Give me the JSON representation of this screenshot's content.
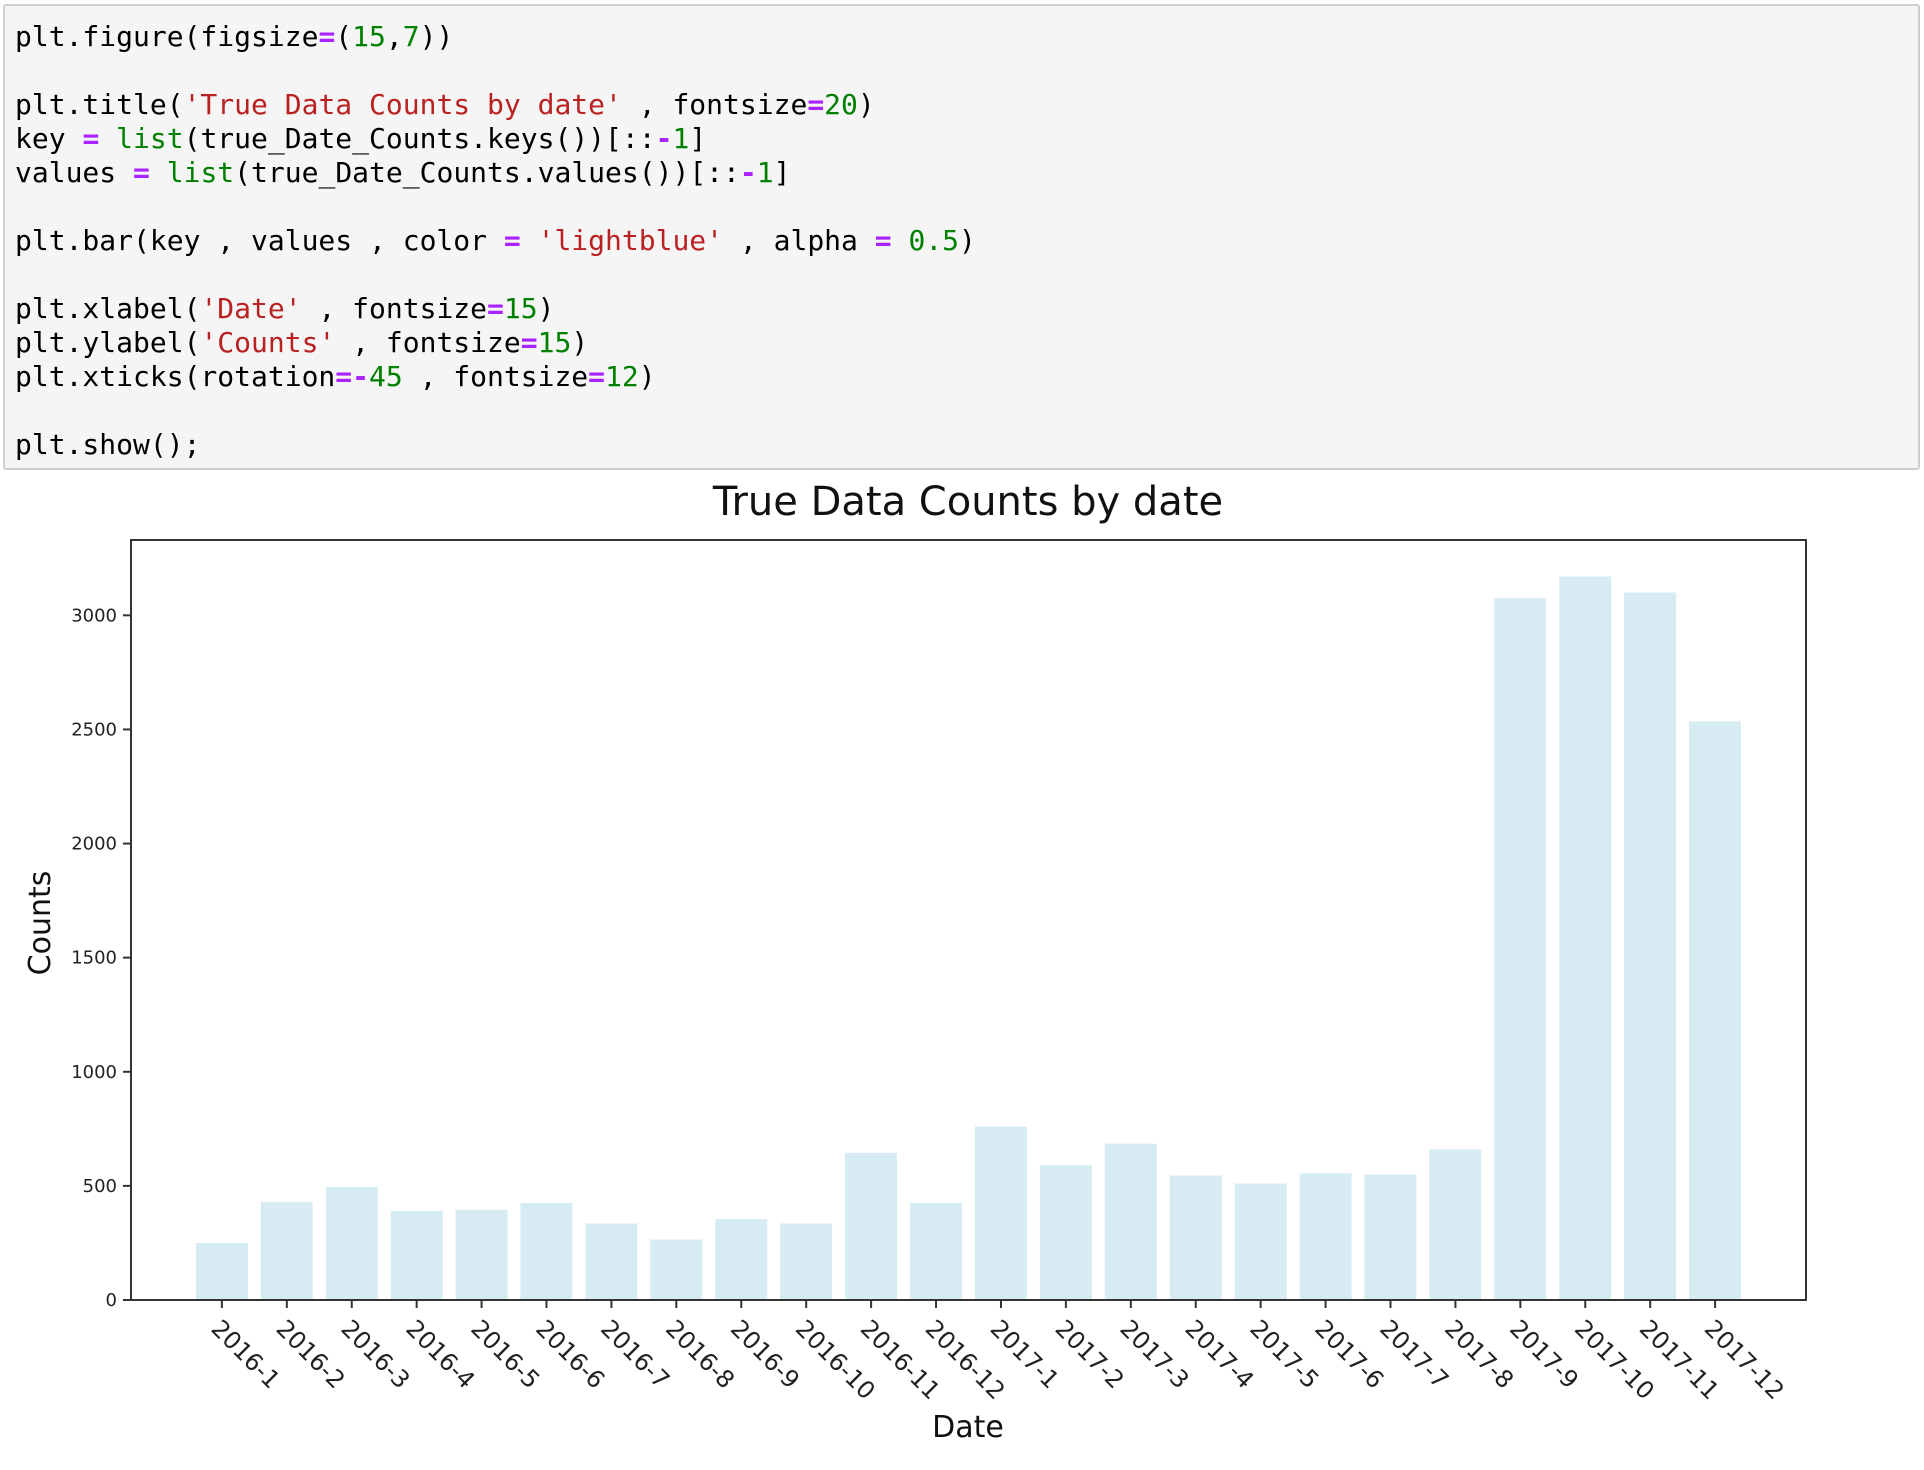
{
  "code_cell": {
    "lines": [
      [
        {
          "t": "plt.figure(figsize"
        },
        {
          "t": "=",
          "c": "op"
        },
        {
          "t": "("
        },
        {
          "t": "15",
          "c": "num"
        },
        {
          "t": ","
        },
        {
          "t": "7",
          "c": "num"
        },
        {
          "t": "))"
        }
      ],
      [],
      [
        {
          "t": "plt.title("
        },
        {
          "t": "'True Data Counts by date'",
          "c": "str"
        },
        {
          "t": " , fontsize"
        },
        {
          "t": "=",
          "c": "op"
        },
        {
          "t": "20",
          "c": "num"
        },
        {
          "t": ")"
        }
      ],
      [
        {
          "t": "key "
        },
        {
          "t": "=",
          "c": "op"
        },
        {
          "t": " "
        },
        {
          "t": "list",
          "c": "bi"
        },
        {
          "t": "(true_Date_Counts.keys())[::"
        },
        {
          "t": "-",
          "c": "op"
        },
        {
          "t": "1",
          "c": "num"
        },
        {
          "t": "]"
        }
      ],
      [
        {
          "t": "values "
        },
        {
          "t": "=",
          "c": "op"
        },
        {
          "t": " "
        },
        {
          "t": "list",
          "c": "bi"
        },
        {
          "t": "(true_Date_Counts.values())[::"
        },
        {
          "t": "-",
          "c": "op"
        },
        {
          "t": "1",
          "c": "num"
        },
        {
          "t": "]"
        }
      ],
      [],
      [
        {
          "t": "plt.bar(key , values , color "
        },
        {
          "t": "=",
          "c": "op"
        },
        {
          "t": " "
        },
        {
          "t": "'lightblue'",
          "c": "str"
        },
        {
          "t": " , alpha "
        },
        {
          "t": "=",
          "c": "op"
        },
        {
          "t": " "
        },
        {
          "t": "0.5",
          "c": "num"
        },
        {
          "t": ")"
        }
      ],
      [],
      [
        {
          "t": "plt.xlabel("
        },
        {
          "t": "'Date'",
          "c": "str"
        },
        {
          "t": " , fontsize"
        },
        {
          "t": "=",
          "c": "op"
        },
        {
          "t": "15",
          "c": "num"
        },
        {
          "t": ")"
        }
      ],
      [
        {
          "t": "plt.ylabel("
        },
        {
          "t": "'Counts'",
          "c": "str"
        },
        {
          "t": " , fontsize"
        },
        {
          "t": "=",
          "c": "op"
        },
        {
          "t": "15",
          "c": "num"
        },
        {
          "t": ")"
        }
      ],
      [
        {
          "t": "plt.xticks(rotation"
        },
        {
          "t": "=-",
          "c": "op"
        },
        {
          "t": "45",
          "c": "num"
        },
        {
          "t": " , fontsize"
        },
        {
          "t": "=",
          "c": "op"
        },
        {
          "t": "12",
          "c": "num"
        },
        {
          "t": ")"
        }
      ],
      [],
      [
        {
          "t": "plt.show();"
        }
      ]
    ]
  },
  "colors": {
    "bar": "#add8e6",
    "bar_alpha": 0.5,
    "string": "#ba2121",
    "number": "#008000",
    "operator": "#aa22ff"
  },
  "chart_data": {
    "type": "bar",
    "title": "True Data Counts by date",
    "xlabel": "Date",
    "ylabel": "Counts",
    "categories": [
      "2016-1",
      "2016-2",
      "2016-3",
      "2016-4",
      "2016-5",
      "2016-6",
      "2016-7",
      "2016-8",
      "2016-9",
      "2016-10",
      "2016-11",
      "2016-12",
      "2017-1",
      "2017-2",
      "2017-3",
      "2017-4",
      "2017-5",
      "2017-6",
      "2017-7",
      "2017-8",
      "2017-9",
      "2017-10",
      "2017-11",
      "2017-12"
    ],
    "values": [
      250,
      430,
      495,
      390,
      395,
      425,
      335,
      265,
      355,
      335,
      645,
      425,
      760,
      590,
      685,
      545,
      510,
      555,
      550,
      660,
      3075,
      3170,
      3100,
      2535
    ],
    "yticks": [
      0,
      500,
      1000,
      1500,
      2000,
      2500,
      3000
    ],
    "ylim": [
      0,
      3330
    ],
    "xtick_rotation": 45,
    "grid": false,
    "color": "lightblue",
    "alpha": 0.5
  }
}
